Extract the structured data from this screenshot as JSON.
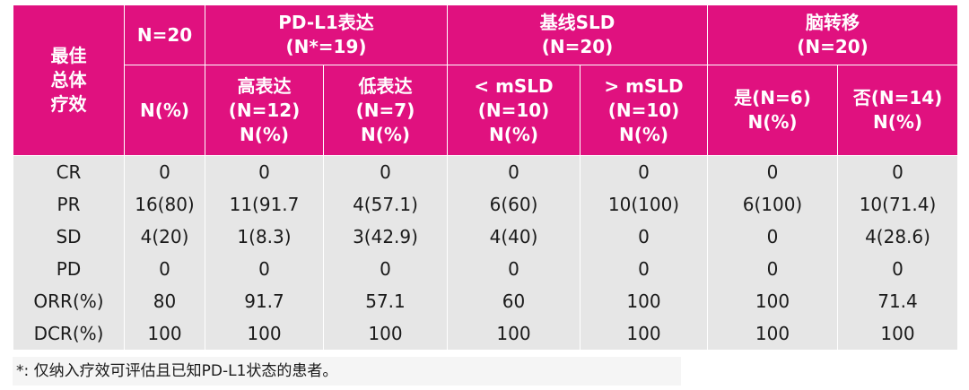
{
  "header": {
    "row_label": [
      "最佳",
      "总体",
      "疗效"
    ],
    "groups": {
      "all": "N=20",
      "pdl1": [
        "PD-L1表达",
        "(N*=19)"
      ],
      "sld": [
        "基线SLD",
        "(N=20)"
      ],
      "brain": [
        "脑转移",
        "(N=20)"
      ]
    },
    "sub": {
      "all": "N(%)",
      "high": [
        "高表达",
        "(N=12)",
        "N(%)"
      ],
      "low": [
        "低表达",
        "(N=7)",
        "N(%)"
      ],
      "lt": [
        "< mSLD",
        "(N=10)",
        "N(%)"
      ],
      "gt": [
        "> mSLD",
        "(N=10)",
        "N(%)"
      ],
      "yes": [
        "是(N=6)",
        "N(%)"
      ],
      "no": [
        "否(N=14)",
        "N(%)"
      ]
    }
  },
  "rows": [
    {
      "label": "CR",
      "cells": [
        "0",
        "0",
        "0",
        "0",
        "0",
        "0",
        "0"
      ]
    },
    {
      "label": "PR",
      "cells": [
        "16(80)",
        "11(91.7",
        "4(57.1)",
        "6(60)",
        "10(100)",
        "6(100)",
        "10(71.4)"
      ]
    },
    {
      "label": "SD",
      "cells": [
        "4(20)",
        "1(8.3)",
        "3(42.9)",
        "4(40)",
        "0",
        "0",
        "4(28.6)"
      ]
    },
    {
      "label": "PD",
      "cells": [
        "0",
        "0",
        "0",
        "0",
        "0",
        "0",
        "0"
      ]
    },
    {
      "label": "ORR(%)",
      "cells": [
        "80",
        "91.7",
        "57.1",
        "60",
        "100",
        "100",
        "71.4"
      ]
    },
    {
      "label": "DCR(%)",
      "cells": [
        "100",
        "100",
        "100",
        "100",
        "100",
        "100",
        "100"
      ]
    }
  ],
  "footnote": "*: 仅纳入疗效可评估且已知PD-L1状态的患者。"
}
